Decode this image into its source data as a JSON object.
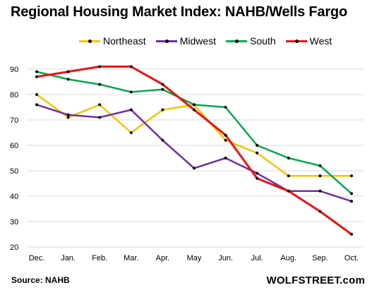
{
  "chart_data": {
    "type": "line",
    "title": "Regional Housing Market Index: NAHB/Wells Fargo",
    "categories": [
      "Dec.",
      "Jan.",
      "Feb.",
      "Mar.",
      "Apr.",
      "May",
      "Jun.",
      "Jul.",
      "Aug.",
      "Sep.",
      "Oct."
    ],
    "ylim": [
      20,
      90
    ],
    "yticks": [
      "20",
      "30",
      "40",
      "50",
      "60",
      "70",
      "80",
      "90"
    ],
    "grid": true,
    "legend_position": "top",
    "series": [
      {
        "name": "Northeast",
        "color": "#f5c400",
        "values": [
          80,
          71,
          76,
          65,
          74,
          76,
          62,
          57,
          48,
          48,
          48
        ]
      },
      {
        "name": "Midwest",
        "color": "#7030a0",
        "values": [
          76,
          72,
          71,
          74,
          62,
          51,
          55,
          49,
          42,
          42,
          38
        ]
      },
      {
        "name": "South",
        "color": "#00a84f",
        "values": [
          89,
          86,
          84,
          81,
          82,
          76,
          75,
          60,
          55,
          52,
          41
        ]
      },
      {
        "name": "West",
        "color": "#ee1111",
        "values": [
          87,
          89,
          91,
          91,
          84,
          74,
          64,
          47,
          42,
          34,
          25
        ]
      }
    ]
  },
  "source": "Source: NAHB",
  "watermark": "WOLFSTREET.com"
}
